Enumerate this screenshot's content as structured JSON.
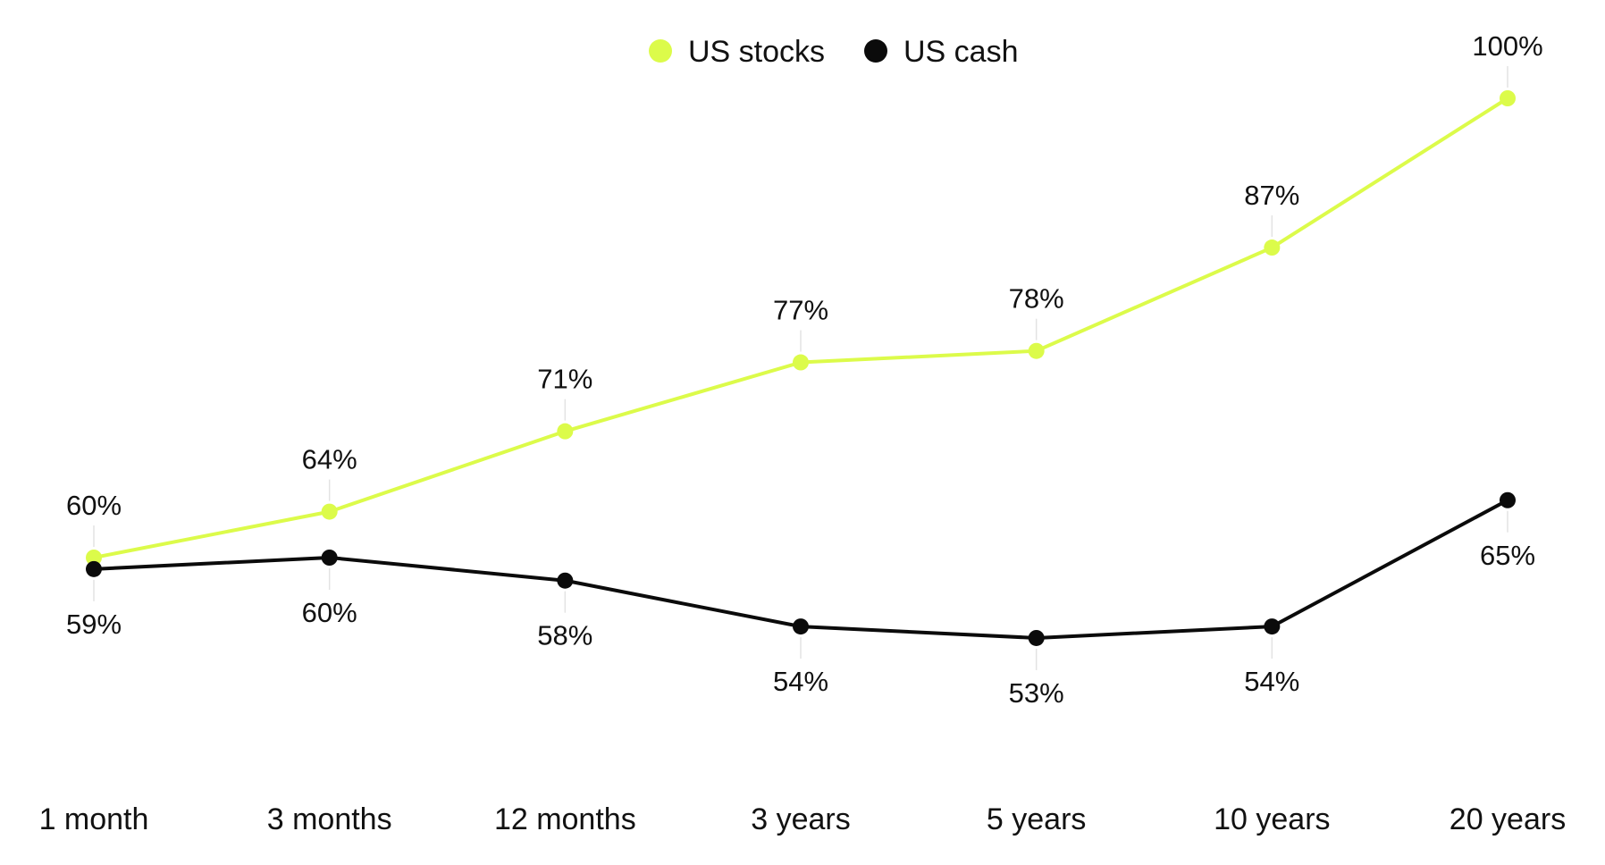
{
  "chart_data": {
    "type": "line",
    "categories": [
      "1 month",
      "3 months",
      "12 months",
      "3 years",
      "5 years",
      "10 years",
      "20 years"
    ],
    "series": [
      {
        "name": "US stocks",
        "color": "#dcfb4a",
        "values": [
          60,
          64,
          71,
          77,
          78,
          87,
          100
        ],
        "labels": [
          "60%",
          "64%",
          "71%",
          "77%",
          "78%",
          "87%",
          "100%"
        ],
        "label_position": "above"
      },
      {
        "name": "US cash",
        "color": "#0b0b0b",
        "values": [
          59,
          60,
          58,
          54,
          53,
          54,
          65
        ],
        "labels": [
          "59%",
          "60%",
          "58%",
          "54%",
          "53%",
          "54%",
          "65%"
        ],
        "label_position": "below"
      }
    ],
    "legend": "top-center",
    "grid": false,
    "ylim": [
      50,
      100
    ],
    "value_format": "percent"
  }
}
